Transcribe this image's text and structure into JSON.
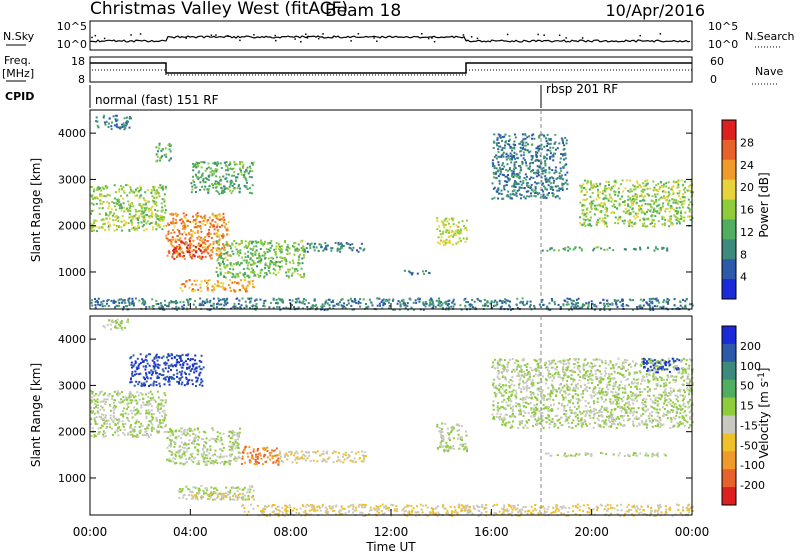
{
  "header": {
    "title": "Christmas Valley West (fitACF)",
    "beam": "Beam 18",
    "date": "10/Apr/2016"
  },
  "params": {
    "nsky_label": "N.Sky",
    "nsky_ticks": [
      "10^5",
      "10^0"
    ],
    "nsearch_label": "N.Search",
    "nsearch_ticks": [
      "10^5",
      "10^0"
    ],
    "freq_label_1": "Freq.",
    "freq_label_2": "[MHz]",
    "freq_ticks": [
      "18",
      "8"
    ],
    "nave_label": "Nave",
    "nave_ticks": [
      "60",
      "0"
    ],
    "cpid_label": "CPID",
    "cpid_1": "normal (fast) 151 RF",
    "cpid_2": "rbsp 201 RF"
  },
  "colors": {
    "power_scale": [
      "#1a2ad8",
      "#2c5aa8",
      "#3c8a7c",
      "#4fae60",
      "#8fcc3c",
      "#e8d43a",
      "#f09a2a",
      "#e8602a",
      "#dd1f1f"
    ],
    "velocity_scale": [
      "#1a2ad8",
      "#2c5aa8",
      "#3c8a7c",
      "#4fae60",
      "#8fcc3c",
      "#c9c9c2",
      "#f0c02a",
      "#f09a2a",
      "#e8602a",
      "#dd1f1f"
    ]
  },
  "chart_data": [
    {
      "type": "heatmap",
      "quantity": "power",
      "ylabel": "Slant Range [km]",
      "xlabel": "",
      "x_ticks": [
        "00:00",
        "04:00",
        "08:00",
        "12:00",
        "16:00",
        "20:00",
        "00:00"
      ],
      "y_ticks": [
        "1000",
        "2000",
        "3000",
        "4000"
      ],
      "ylim": [
        200,
        4500
      ],
      "xlim_hours": [
        0,
        24
      ],
      "colorbar_label": "Power [dB]",
      "colorbar_ticks": [
        "4",
        "8",
        "12",
        "16",
        "20",
        "24",
        "28"
      ],
      "colorbar_range": [
        0,
        32
      ],
      "regions": [
        {
          "t": [
            0.0,
            3.0
          ],
          "r": [
            1900,
            2900
          ],
          "value": 16
        },
        {
          "t": [
            0.2,
            1.6
          ],
          "r": [
            4100,
            4400
          ],
          "value": 8
        },
        {
          "t": [
            2.6,
            3.2
          ],
          "r": [
            3400,
            3800
          ],
          "value": 12
        },
        {
          "t": [
            3.0,
            5.5
          ],
          "r": [
            1300,
            2300
          ],
          "value": 24
        },
        {
          "t": [
            3.2,
            4.5
          ],
          "r": [
            1300,
            1700
          ],
          "value": 28
        },
        {
          "t": [
            4.0,
            6.5
          ],
          "r": [
            2700,
            3400
          ],
          "value": 12
        },
        {
          "t": [
            3.5,
            6.5
          ],
          "r": [
            600,
            850
          ],
          "value": 22
        },
        {
          "t": [
            5.0,
            8.5
          ],
          "r": [
            900,
            1700
          ],
          "value": 14
        },
        {
          "t": [
            8.5,
            11.0
          ],
          "r": [
            1450,
            1650
          ],
          "value": 8
        },
        {
          "t": [
            12.5,
            13.5
          ],
          "r": [
            950,
            1050
          ],
          "value": 8
        },
        {
          "t": [
            13.8,
            15.0
          ],
          "r": [
            1600,
            2200
          ],
          "value": 18
        },
        {
          "t": [
            16.0,
            19.0
          ],
          "r": [
            2600,
            4000
          ],
          "value": 8
        },
        {
          "t": [
            18.0,
            23.0
          ],
          "r": [
            1480,
            1560
          ],
          "value": 12
        },
        {
          "t": [
            19.5,
            24.0
          ],
          "r": [
            2000,
            3000
          ],
          "value": 16
        },
        {
          "t": [
            0.0,
            24.0
          ],
          "r": [
            200,
            450
          ],
          "value": 8
        }
      ]
    },
    {
      "type": "heatmap",
      "quantity": "velocity",
      "ylabel": "Slant Range [km]",
      "xlabel": "Time UT",
      "x_ticks": [
        "00:00",
        "04:00",
        "08:00",
        "12:00",
        "16:00",
        "20:00",
        "00:00"
      ],
      "y_ticks": [
        "1000",
        "2000",
        "3000",
        "4000"
      ],
      "ylim": [
        200,
        4500
      ],
      "xlim_hours": [
        0,
        24
      ],
      "colorbar_label": "Velocity [m s-1]",
      "colorbar_ticks": [
        "200",
        "100",
        "50",
        "15",
        "-15",
        "-50",
        "-100",
        "-200"
      ],
      "colorbar_range": [
        -250,
        250
      ],
      "regions": [
        {
          "t": [
            0.0,
            3.0
          ],
          "r": [
            1900,
            2900
          ],
          "value": 0
        },
        {
          "t": [
            0.5,
            1.5
          ],
          "r": [
            4200,
            4450
          ],
          "value": 0
        },
        {
          "t": [
            1.5,
            4.5
          ],
          "r": [
            3000,
            3700
          ],
          "value": 200
        },
        {
          "t": [
            3.0,
            6.0
          ],
          "r": [
            1300,
            2100
          ],
          "value": 0
        },
        {
          "t": [
            3.5,
            6.5
          ],
          "r": [
            550,
            850
          ],
          "value": 0
        },
        {
          "t": [
            4.0,
            6.5
          ],
          "r": [
            550,
            700
          ],
          "value": -50
        },
        {
          "t": [
            6.0,
            7.5
          ],
          "r": [
            1300,
            1700
          ],
          "value": -150
        },
        {
          "t": [
            7.5,
            11.0
          ],
          "r": [
            1350,
            1600
          ],
          "value": -50
        },
        {
          "t": [
            13.8,
            15.0
          ],
          "r": [
            1600,
            2200
          ],
          "value": 0
        },
        {
          "t": [
            16.0,
            24.0
          ],
          "r": [
            2100,
            3600
          ],
          "value": 0
        },
        {
          "t": [
            22.0,
            23.5
          ],
          "r": [
            3300,
            3600
          ],
          "value": 200
        },
        {
          "t": [
            18.0,
            23.0
          ],
          "r": [
            1480,
            1560
          ],
          "value": 0
        },
        {
          "t": [
            6.0,
            24.0
          ],
          "r": [
            200,
            450
          ],
          "value": -50
        }
      ]
    }
  ]
}
